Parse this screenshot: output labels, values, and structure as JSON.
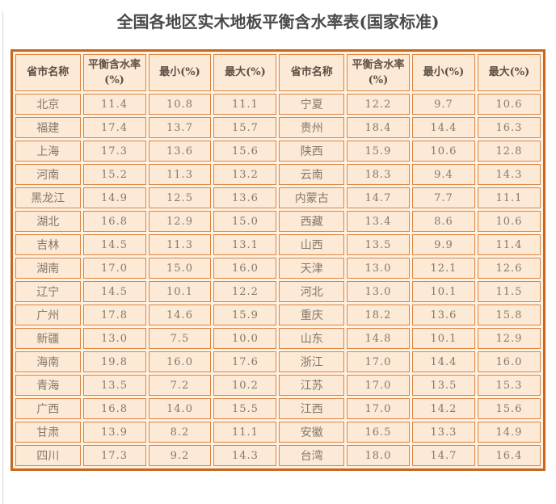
{
  "page_title": "全国各地区实木地板平衡含水率表(国家标准)",
  "table": {
    "headers": [
      "省市名称",
      "平衡含水率(%)",
      "最小(%)",
      "最大(%)",
      "省市名称",
      "平衡含水率(%)",
      "最小(%)",
      "最大(%)"
    ],
    "rows": [
      [
        "北京",
        "11.4",
        "10.8",
        "11.1",
        "宁夏",
        "12.2",
        "9.7",
        "10.6"
      ],
      [
        "福建",
        "17.4",
        "13.7",
        "15.7",
        "贵州",
        "18.4",
        "14.4",
        "16.3"
      ],
      [
        "上海",
        "17.3",
        "13.6",
        "15.6",
        "陕西",
        "15.9",
        "10.6",
        "12.8"
      ],
      [
        "河南",
        "15.2",
        "11.3",
        "13.2",
        "云南",
        "18.3",
        "9.4",
        "14.3"
      ],
      [
        "黑龙江",
        "14.9",
        "12.5",
        "13.6",
        "内蒙古",
        "14.7",
        "7.7",
        "11.1"
      ],
      [
        "湖北",
        "16.8",
        "12.9",
        "15.0",
        "西藏",
        "13.4",
        "8.6",
        "10.6"
      ],
      [
        "吉林",
        "14.5",
        "11.3",
        "13.1",
        "山西",
        "13.5",
        "9.9",
        "11.4"
      ],
      [
        "湖南",
        "17.0",
        "15.0",
        "16.0",
        "天津",
        "13.0",
        "12.1",
        "12.6"
      ],
      [
        "辽宁",
        "14.5",
        "10.1",
        "12.2",
        "河北",
        "13.0",
        "10.1",
        "11.5"
      ],
      [
        "广州",
        "17.8",
        "14.6",
        "15.9",
        "重庆",
        "18.2",
        "13.6",
        "15.8"
      ],
      [
        "新疆",
        "13.0",
        "7.5",
        "10.0",
        "山东",
        "14.8",
        "10.1",
        "12.9"
      ],
      [
        "海南",
        "19.8",
        "16.0",
        "17.6",
        "浙江",
        "17.0",
        "14.4",
        "16.0"
      ],
      [
        "青海",
        "13.5",
        "7.2",
        "10.2",
        "江苏",
        "17.0",
        "13.5",
        "15.3"
      ],
      [
        "广西",
        "16.8",
        "14.0",
        "15.5",
        "江西",
        "17.0",
        "14.2",
        "15.6"
      ],
      [
        "甘肃",
        "13.9",
        "8.2",
        "11.1",
        "安徽",
        "16.5",
        "13.3",
        "14.9"
      ],
      [
        "四川",
        "17.3",
        "9.2",
        "14.3",
        "台湾",
        "18.0",
        "14.7",
        "16.4"
      ]
    ]
  },
  "colors": {
    "outer-border": "#c9671c",
    "cell-border": "#dd8440",
    "cell-bg": "#fce9d6",
    "gap-bg": "#fdf2e4",
    "title-text": "#4a4a4a",
    "header-text": "#5d5043",
    "cell-text": "#85796b"
  }
}
